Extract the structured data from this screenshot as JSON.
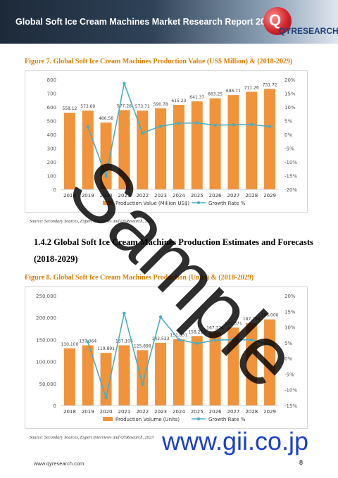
{
  "header": {
    "title": "Global Soft Ice Cream Machines Market Research Report 2023",
    "logo_text": "QYRESEARCH",
    "logo_letter": "Q"
  },
  "figure7": {
    "title": "Figure 7.   Global Soft Ice Cream Machines Production Value (US$ Million) & (2018-2029)",
    "source": "Source: Secondary Sources, Expert Interviews and QYResearch, 2023"
  },
  "section": {
    "line1": "1.4.2  Global Soft Ice Cream Machines Production Estimates and Forecasts",
    "line2": "(2018-2029)"
  },
  "figure8": {
    "title": "Figure 8.   Global Soft Ice Cream Machines Production (Units) & (2018-2029)",
    "source": "Source: Secondary Sources, Expert Interviews and QYResearch, 2023"
  },
  "footer": {
    "url": "www.qyresearch.com",
    "page": "8"
  },
  "watermark": {
    "sample": "Sample",
    "site": "www.gii.co.jp"
  },
  "colors": {
    "bar": "#f0933a",
    "line": "#4bacc6",
    "title": "#e07b00"
  },
  "chart_data": [
    {
      "type": "bar",
      "categories": [
        "2018",
        "2019",
        "2020",
        "2021",
        "2022",
        "2023",
        "2024",
        "2025",
        "2026",
        "2027",
        "2028",
        "2029"
      ],
      "series": [
        {
          "name": "Production Value (Million US$)",
          "axis": "left",
          "values": [
            558.12,
            573.69,
            486.58,
            577.26,
            573.71,
            590.78,
            615.23,
            641.37,
            663.25,
            686.71,
            711.26,
            731.72
          ],
          "labels": [
            "558.12",
            "573.69",
            "486.58",
            "577.26",
            "573.71",
            "590.78",
            "615.23",
            "641.37",
            "663.25",
            "686.71",
            "711.26",
            "731.72"
          ]
        },
        {
          "name": "Growth Rate %",
          "axis": "right",
          "type": "line",
          "values": [
            null,
            2.8,
            -15.2,
            18.6,
            0.5,
            3.0,
            4.1,
            4.2,
            3.4,
            3.5,
            3.6,
            2.9
          ]
        }
      ],
      "left_ticks": [
        "0",
        "100",
        "200",
        "300",
        "400",
        "500",
        "600",
        "700",
        "800"
      ],
      "right_ticks": [
        "-20%",
        "-15%",
        "-10%",
        "-5%",
        "0%",
        "5%",
        "10%",
        "15%",
        "20%"
      ],
      "ylim": [
        0,
        800
      ],
      "y2lim": [
        -20,
        20
      ],
      "legend": [
        "Production Value (Million US$)",
        "Growth Rate %"
      ]
    },
    {
      "type": "bar",
      "categories": [
        "2018",
        "2019",
        "2020",
        "2021",
        "2022",
        "2023",
        "2024",
        "2025",
        "2026",
        "2027",
        "2028",
        "2029"
      ],
      "series": [
        {
          "name": "Production Volume (Units)",
          "axis": "left",
          "values": [
            130100,
            137064,
            119891,
            137106,
            125898,
            142523,
            151031,
            158219,
            167374,
            177371,
            187754,
            196000
          ],
          "labels": [
            "130,100",
            "137,064",
            "119,891",
            "137,106",
            "125,898",
            "142,523",
            "151,031",
            "158,219",
            "167,374",
            "177,371",
            "187,754",
            "196,000"
          ]
        },
        {
          "name": "Growth Rate %",
          "axis": "right",
          "type": "line",
          "values": [
            null,
            5.3,
            -12.5,
            14.4,
            -8.2,
            13.2,
            6.0,
            4.8,
            5.8,
            6.0,
            5.9,
            4.4
          ]
        }
      ],
      "left_ticks": [
        "0",
        "50,000",
        "100,000",
        "150,000",
        "200,000",
        "250,000"
      ],
      "right_ticks": [
        "-15%",
        "-10%",
        "-5%",
        "0%",
        "5%",
        "10%",
        "15%",
        "20%"
      ],
      "ylim": [
        0,
        250000
      ],
      "y2lim": [
        -15,
        20
      ],
      "legend": [
        "Production Volume (Units)",
        "Growth Rate %"
      ]
    }
  ]
}
